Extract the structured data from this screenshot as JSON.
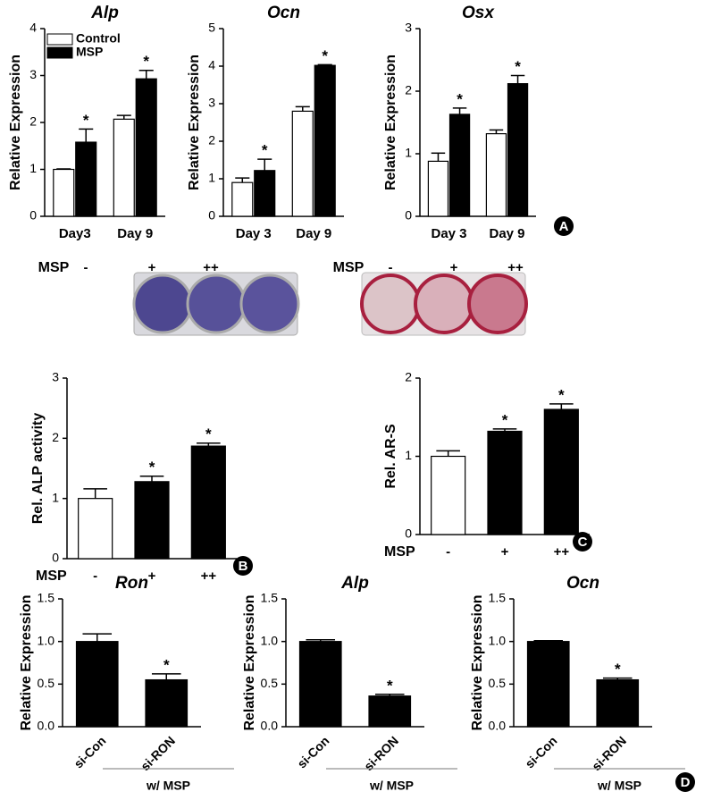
{
  "chart_data": [
    {
      "type": "bar",
      "title": "Alp",
      "ylabel": "Relative Expression",
      "categories": [
        "Day3",
        "Day 9"
      ],
      "ylim": [
        0,
        4
      ],
      "yticks": [
        0,
        1,
        2,
        3,
        4
      ],
      "legend": "upper left",
      "series": [
        {
          "name": "Control",
          "color": "#ffffff",
          "values": [
            1.0,
            2.07
          ],
          "errors": [
            0.01,
            0.08
          ]
        },
        {
          "name": "MSP",
          "color": "#000000",
          "values": [
            1.58,
            2.93
          ],
          "errors": [
            0.28,
            0.18
          ],
          "markers": [
            "*",
            "*"
          ]
        }
      ]
    },
    {
      "type": "bar",
      "title": "Ocn",
      "ylabel": "Relative Expression",
      "categories": [
        "Day 3",
        "Day 9"
      ],
      "ylim": [
        0,
        5
      ],
      "yticks": [
        0,
        1,
        2,
        3,
        4,
        5
      ],
      "series": [
        {
          "name": "Control",
          "color": "#ffffff",
          "values": [
            0.9,
            2.8
          ],
          "errors": [
            0.12,
            0.12
          ]
        },
        {
          "name": "MSP",
          "color": "#000000",
          "values": [
            1.22,
            4.02
          ],
          "errors": [
            0.3,
            0.02
          ],
          "markers": [
            "*",
            "*"
          ]
        }
      ]
    },
    {
      "type": "bar",
      "title": "Osx",
      "ylabel": "Relative Expression",
      "categories": [
        "Day 3",
        "Day 9"
      ],
      "ylim": [
        0,
        3
      ],
      "yticks": [
        0,
        1,
        2,
        3
      ],
      "panel": "A",
      "series": [
        {
          "name": "Control",
          "color": "#ffffff",
          "values": [
            0.88,
            1.32
          ],
          "errors": [
            0.13,
            0.06
          ]
        },
        {
          "name": "MSP",
          "color": "#000000",
          "values": [
            1.63,
            2.12
          ],
          "errors": [
            0.1,
            0.13
          ],
          "markers": [
            "*",
            "*"
          ]
        }
      ]
    },
    {
      "type": "bar",
      "ylabel": "Rel. ALP activity",
      "xlabel": "MSP",
      "categories": [
        "-",
        "+",
        "++"
      ],
      "values": [
        1.0,
        1.28,
        1.87
      ],
      "errors": [
        0.16,
        0.09,
        0.05
      ],
      "markers": [
        null,
        "*",
        "*"
      ],
      "colors": [
        "#ffffff",
        "#000000",
        "#000000"
      ],
      "ylim": [
        0,
        3
      ],
      "yticks": [
        0,
        1,
        2,
        3
      ],
      "panel": "B"
    },
    {
      "type": "bar",
      "ylabel": "Rel. AR-S",
      "xlabel": "MSP",
      "categories": [
        "-",
        "+",
        "++"
      ],
      "values": [
        1.0,
        1.32,
        1.6
      ],
      "errors": [
        0.07,
        0.03,
        0.07
      ],
      "markers": [
        null,
        "*",
        "*"
      ],
      "colors": [
        "#ffffff",
        "#000000",
        "#000000"
      ],
      "ylim": [
        0,
        2
      ],
      "yticks": [
        0,
        1,
        2
      ],
      "panel": "C"
    },
    {
      "type": "bar",
      "title": "Ron",
      "ylabel": "Relative Expression",
      "categories": [
        "si-Con",
        "si-RON"
      ],
      "group_label": "w/ MSP",
      "values": [
        1.0,
        0.55
      ],
      "errors": [
        0.09,
        0.07
      ],
      "markers": [
        null,
        "*"
      ],
      "color": "#000000",
      "ylim": [
        0,
        1.5
      ],
      "yticks": [
        {
          "value": 0,
          "label": "0.0"
        },
        {
          "value": 0.5,
          "label": "0.5"
        },
        {
          "value": 1,
          "label": "1.0"
        },
        {
          "value": 1.5,
          "label": "1.5"
        }
      ]
    },
    {
      "type": "bar",
      "title": "Alp",
      "ylabel": "Relative Expression",
      "categories": [
        "si-Con",
        "si-RON"
      ],
      "group_label": "w/ MSP",
      "values": [
        1.0,
        0.36
      ],
      "errors": [
        0.02,
        0.02
      ],
      "markers": [
        null,
        "*"
      ],
      "color": "#000000",
      "ylim": [
        0,
        1.5
      ],
      "yticks": [
        {
          "value": 0,
          "label": "0.0"
        },
        {
          "value": 0.5,
          "label": "0.5"
        },
        {
          "value": 1,
          "label": "1.0"
        },
        {
          "value": 1.5,
          "label": "1.5"
        }
      ]
    },
    {
      "type": "bar",
      "title": "Ocn",
      "ylabel": "Relative Expression",
      "categories": [
        "si-Con",
        "si-RON"
      ],
      "group_label": "w/ MSP",
      "values": [
        1.0,
        0.55
      ],
      "errors": [
        0.01,
        0.02
      ],
      "markers": [
        null,
        "*"
      ],
      "color": "#000000",
      "ylim": [
        0,
        1.5
      ],
      "panel": "D",
      "yticks": [
        {
          "value": 0,
          "label": "0.0"
        },
        {
          "value": 0.5,
          "label": "0.5"
        },
        {
          "value": 1,
          "label": "1.0"
        },
        {
          "value": 1.5,
          "label": "1.5"
        }
      ]
    }
  ]
}
